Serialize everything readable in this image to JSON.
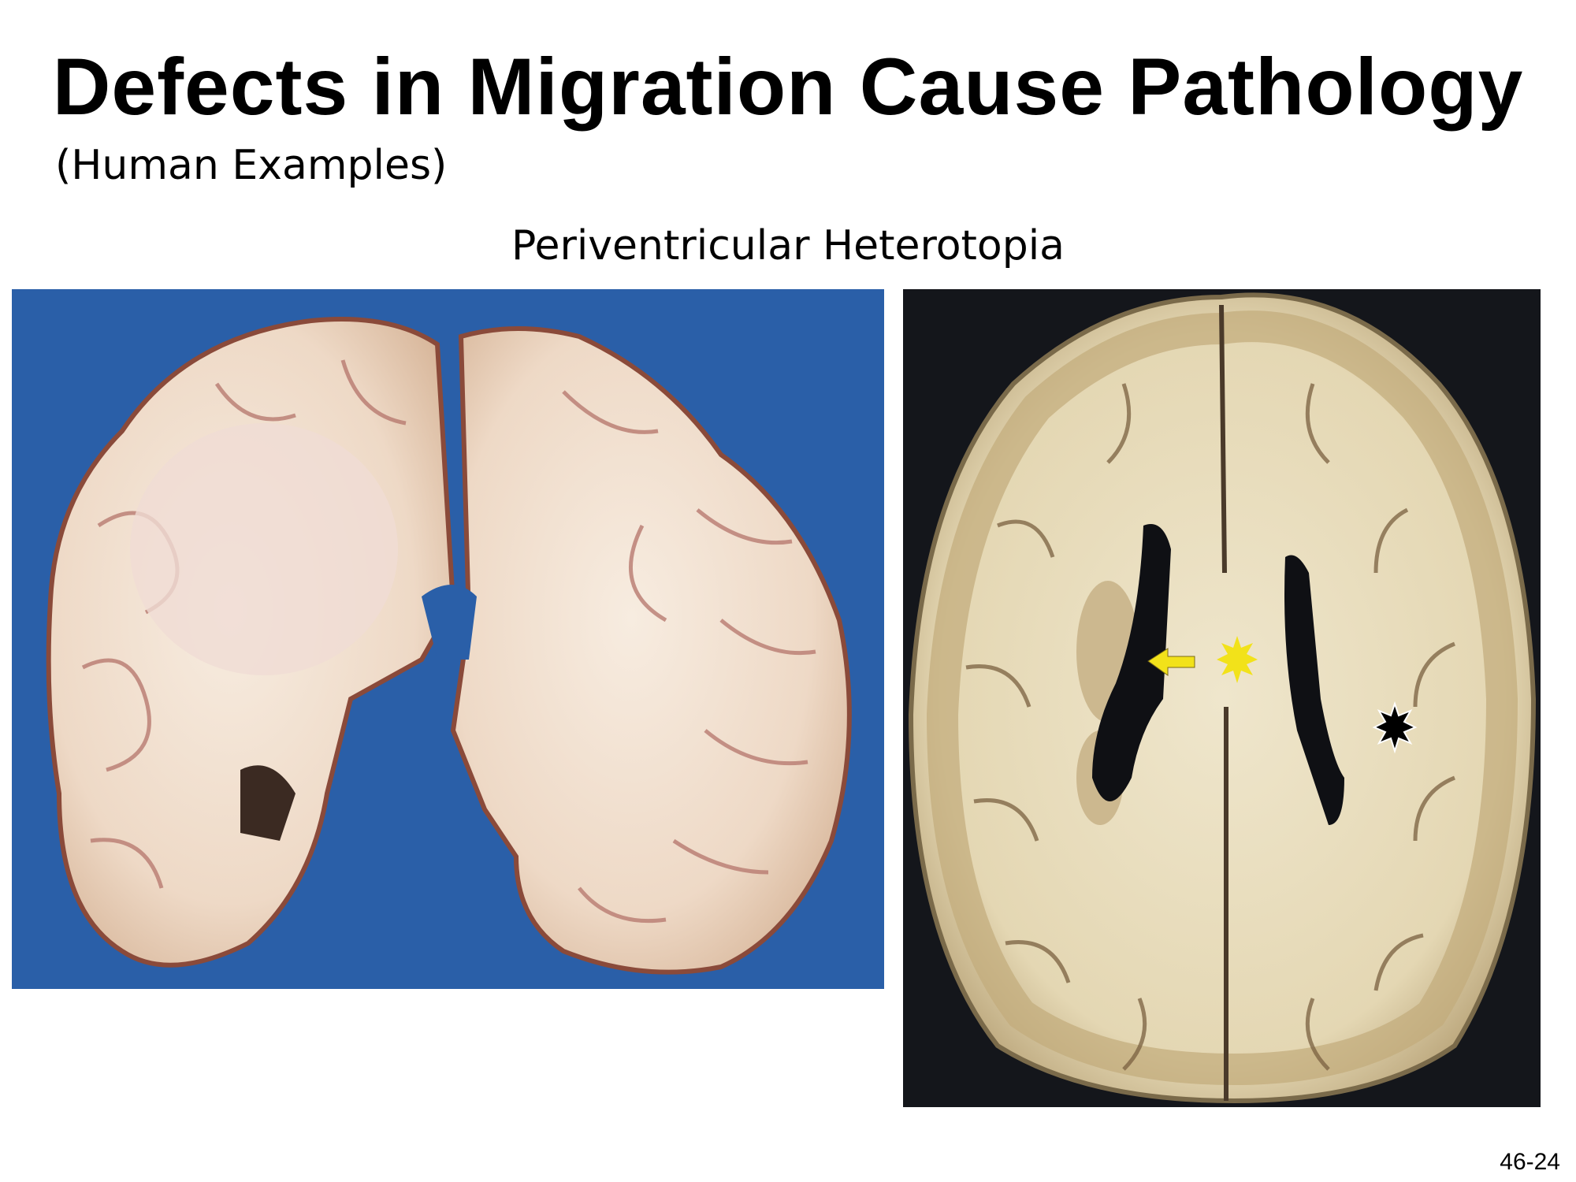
{
  "slide": {
    "title": "Defects in Migration Cause Pathology",
    "subtitle": "(Human Examples)",
    "caption": "Periventricular Heterotopia",
    "page_number": "46-24"
  },
  "images": [
    {
      "name": "coronal-brain-section-photo",
      "background": "#2a5fa8"
    },
    {
      "name": "axial-brain-section-photo",
      "background": "#14161b"
    }
  ],
  "markers": {
    "arrow_color": "#f2e21a",
    "yellow_star_color": "#f2e21a",
    "black_star_color": "#000000"
  }
}
